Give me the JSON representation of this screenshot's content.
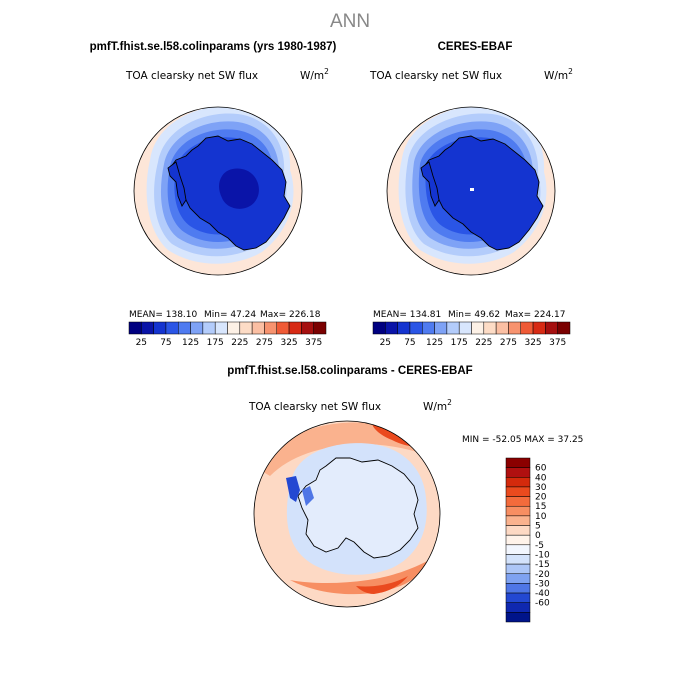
{
  "page_title": "ANN",
  "panels": [
    {
      "id": "model",
      "heading": "pmfT.fhist.se.l58.colinparams (yrs 1980-1987)",
      "variable": "TOA clearsky net SW flux",
      "units_base": "W/m",
      "units_exp": "2",
      "stats": {
        "mean": "MEAN= 138.10",
        "min": "Min= 47.24",
        "max": "Max= 226.18"
      },
      "colorbar": {
        "colors": [
          "#000080",
          "#0a14a8",
          "#1434d0",
          "#2a55e6",
          "#4f7bf0",
          "#7ea2f6",
          "#b3ccfb",
          "#d8e6fd",
          "#fdf1e6",
          "#fddcc6",
          "#fbbfa3",
          "#f7936f",
          "#ef5a36",
          "#d72a14",
          "#a50f0f",
          "#7a0000"
        ],
        "labels": [
          "25",
          "75",
          "125",
          "175",
          "225",
          "275",
          "325",
          "375"
        ]
      }
    },
    {
      "id": "obs",
      "heading": "CERES-EBAF",
      "variable": "TOA clearsky net SW flux",
      "units_base": "W/m",
      "units_exp": "2",
      "stats": {
        "mean": "MEAN= 134.81",
        "min": "Min= 49.62",
        "max": "Max= 224.17"
      },
      "colorbar": {
        "colors": [
          "#000080",
          "#0a14a8",
          "#1434d0",
          "#2a55e6",
          "#4f7bf0",
          "#7ea2f6",
          "#b3ccfb",
          "#d8e6fd",
          "#fdf1e6",
          "#fddcc6",
          "#fbbfa3",
          "#f7936f",
          "#ef5a36",
          "#d72a14",
          "#a50f0f",
          "#7a0000"
        ],
        "labels": [
          "25",
          "75",
          "125",
          "175",
          "225",
          "275",
          "325",
          "375"
        ]
      }
    }
  ],
  "diff_panel": {
    "heading": "pmfT.fhist.se.l58.colinparams - CERES-EBAF",
    "variable": "TOA clearsky net SW flux",
    "units_base": "W/m",
    "units_exp": "2",
    "minmax": "MIN = -52.05 MAX =  37.25",
    "colorbar": {
      "colors": [
        "#8b0000",
        "#b01010",
        "#d42a0c",
        "#ea4a1e",
        "#f36b3c",
        "#f78e62",
        "#fab28e",
        "#fdd9c4",
        "#fff3ea",
        "#f2f6fe",
        "#d3e2fb",
        "#adc6f7",
        "#7fa2f1",
        "#4f76e6",
        "#2348d2",
        "#0f28b0",
        "#00148a"
      ],
      "labels": [
        "60",
        "40",
        "30",
        "20",
        "15",
        "10",
        "5",
        "0",
        "-5",
        "-10",
        "-15",
        "-20",
        "-30",
        "-40",
        "-60"
      ]
    }
  },
  "map_colors": {
    "ocean_outer": "#fde6d8",
    "coastline": "#000000",
    "border": "#000000"
  }
}
